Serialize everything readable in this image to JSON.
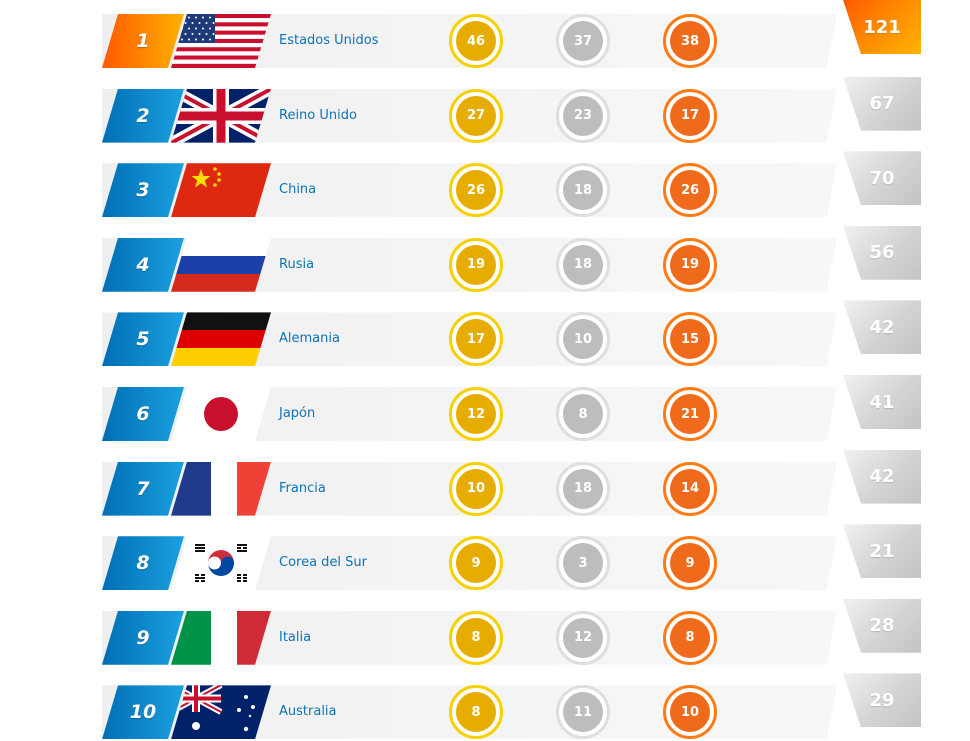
{
  "colors": {
    "rank_blue": "#0b8bd2",
    "rank_gold_orange": "#ff8000",
    "country_text": "#0b73b7",
    "gold_medal": "#e6ad00",
    "silver_medal": "#bdbdbd",
    "bronze_medal": "#f06a1c"
  },
  "rows": [
    {
      "rank": "1",
      "flag": "usa-flag",
      "country": "Estados Unidos",
      "gold": "46",
      "silver": "37",
      "bronze": "38",
      "total": "121"
    },
    {
      "rank": "2",
      "flag": "uk-flag",
      "country": "Reino Unido",
      "gold": "27",
      "silver": "23",
      "bronze": "17",
      "total": "67"
    },
    {
      "rank": "3",
      "flag": "china-flag",
      "country": "China",
      "gold": "26",
      "silver": "18",
      "bronze": "26",
      "total": "70"
    },
    {
      "rank": "4",
      "flag": "russia-flag",
      "country": "Rusia",
      "gold": "19",
      "silver": "18",
      "bronze": "19",
      "total": "56"
    },
    {
      "rank": "5",
      "flag": "germany-flag",
      "country": "Alemania",
      "gold": "17",
      "silver": "10",
      "bronze": "15",
      "total": "42"
    },
    {
      "rank": "6",
      "flag": "japan-flag",
      "country": "Japón",
      "gold": "12",
      "silver": "8",
      "bronze": "21",
      "total": "41"
    },
    {
      "rank": "7",
      "flag": "france-flag",
      "country": "Francia",
      "gold": "10",
      "silver": "18",
      "bronze": "14",
      "total": "42"
    },
    {
      "rank": "8",
      "flag": "south-korea-flag",
      "country": "Corea del Sur",
      "gold": "9",
      "silver": "3",
      "bronze": "9",
      "total": "21"
    },
    {
      "rank": "9",
      "flag": "italy-flag",
      "country": "Italia",
      "gold": "8",
      "silver": "12",
      "bronze": "8",
      "total": "28"
    },
    {
      "rank": "10",
      "flag": "australia-flag",
      "country": "Australia",
      "gold": "8",
      "silver": "11",
      "bronze": "10",
      "total": "29"
    }
  ]
}
